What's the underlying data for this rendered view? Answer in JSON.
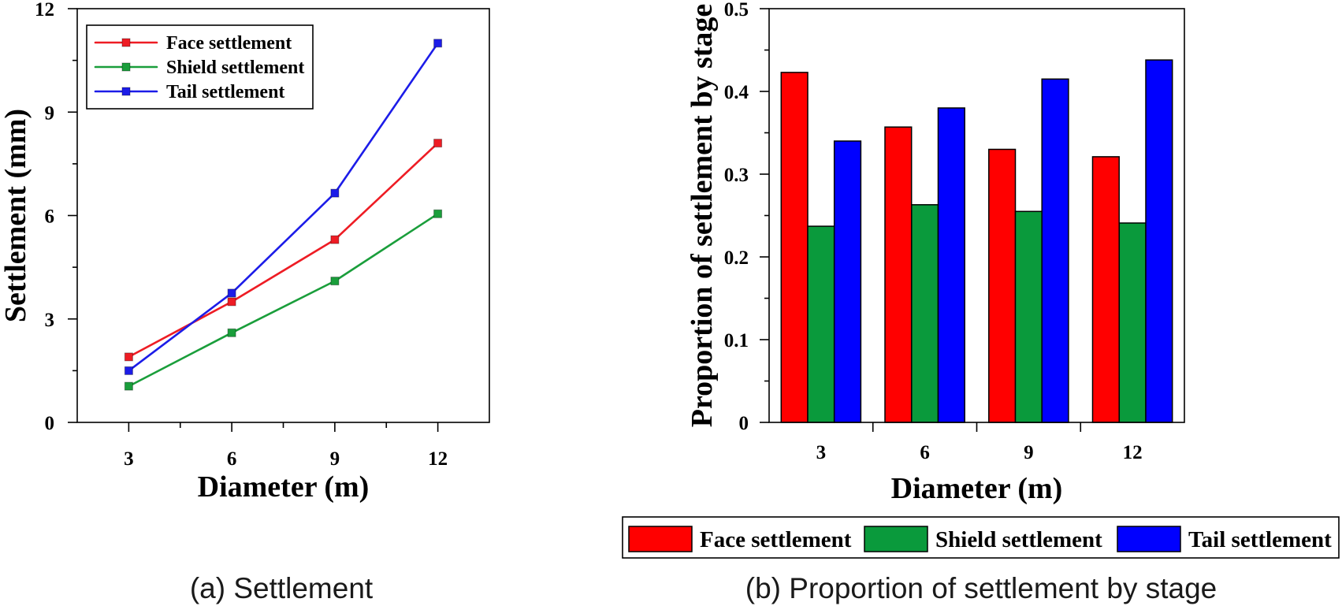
{
  "chart_data": [
    {
      "type": "line",
      "caption": "(a) Settlement",
      "xlabel": "Diameter (m)",
      "ylabel": "Settlement (mm)",
      "x": [
        3,
        6,
        9,
        12
      ],
      "xlim": [
        1.5,
        13.5
      ],
      "ylim": [
        0,
        12
      ],
      "xticks": [
        3,
        6,
        9,
        12
      ],
      "xtick_labels": [
        "3",
        "6",
        "9",
        "12"
      ],
      "yticks": [
        0,
        3,
        6,
        9,
        12
      ],
      "ytick_labels": [
        "0",
        "3",
        "6",
        "9",
        "12"
      ],
      "grid": false,
      "legend": {
        "placement": "top-left"
      },
      "series": [
        {
          "name": "Face settlement",
          "color": "#ee1c24",
          "values": [
            1.9,
            3.5,
            5.3,
            8.1
          ]
        },
        {
          "name": "Shield settlement",
          "color": "#1a9e3b",
          "values": [
            1.05,
            2.6,
            4.1,
            6.05
          ]
        },
        {
          "name": "Tail settlement",
          "color": "#1c1ce8",
          "values": [
            1.5,
            3.75,
            6.65,
            11.0
          ]
        }
      ]
    },
    {
      "type": "bar",
      "caption": "(b) Proportion of settlement by stage",
      "xlabel": "Diameter (m)",
      "ylabel": "Proportion of settlement by stage",
      "categories": [
        "3",
        "6",
        "9",
        "12"
      ],
      "ylim": [
        0,
        0.5
      ],
      "yticks": [
        0,
        0.1,
        0.2,
        0.3,
        0.4,
        0.5
      ],
      "ytick_labels": [
        "0",
        "0.1",
        "0.2",
        "0.3",
        "0.4",
        "0.5"
      ],
      "grid": false,
      "legend": {
        "placement": "bottom"
      },
      "series": [
        {
          "name": "Face settlement",
          "color": "#ff0000",
          "values": [
            0.423,
            0.357,
            0.33,
            0.321
          ]
        },
        {
          "name": "Shield settlement",
          "color": "#0a9a3c",
          "values": [
            0.237,
            0.263,
            0.255,
            0.241
          ]
        },
        {
          "name": "Tail settlement",
          "color": "#0000ff",
          "values": [
            0.34,
            0.38,
            0.415,
            0.438
          ]
        }
      ]
    }
  ]
}
